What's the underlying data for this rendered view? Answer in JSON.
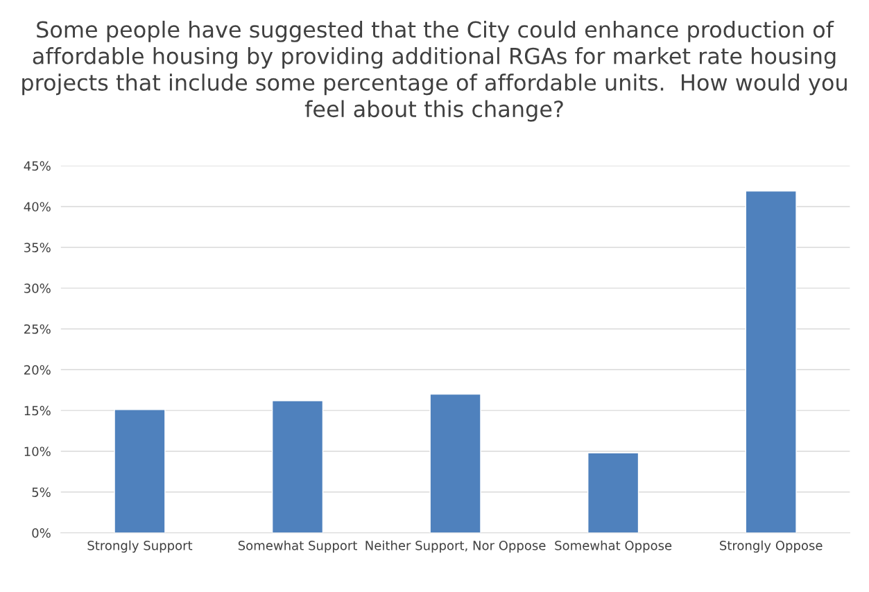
{
  "chart_data": {
    "type": "bar",
    "title": "Some people have suggested that the City could enhance production of affordable housing by providing additional RGAs for market rate housing projects that include some percentage of affordable units.  How would you feel about this change?",
    "categories": [
      "Strongly Support",
      "Somewhat Support",
      "Neither Support, Nor Oppose",
      "Somewhat Oppose",
      "Strongly Oppose"
    ],
    "values": [
      15.1,
      16.2,
      17.0,
      9.8,
      41.9
    ],
    "color": "#4f81bd",
    "ylim": [
      0,
      45
    ],
    "yticks": [
      {
        "value": 0,
        "label": "0%"
      },
      {
        "value": 5,
        "label": "5%"
      },
      {
        "value": 10,
        "label": "10%"
      },
      {
        "value": 15,
        "label": "15%"
      },
      {
        "value": 20,
        "label": "20%"
      },
      {
        "value": 25,
        "label": "25%"
      },
      {
        "value": 30,
        "label": "30%"
      },
      {
        "value": 35,
        "label": "35%"
      },
      {
        "value": 40,
        "label": "40%"
      },
      {
        "value": 45,
        "label": "45%"
      }
    ],
    "grid": "y"
  }
}
